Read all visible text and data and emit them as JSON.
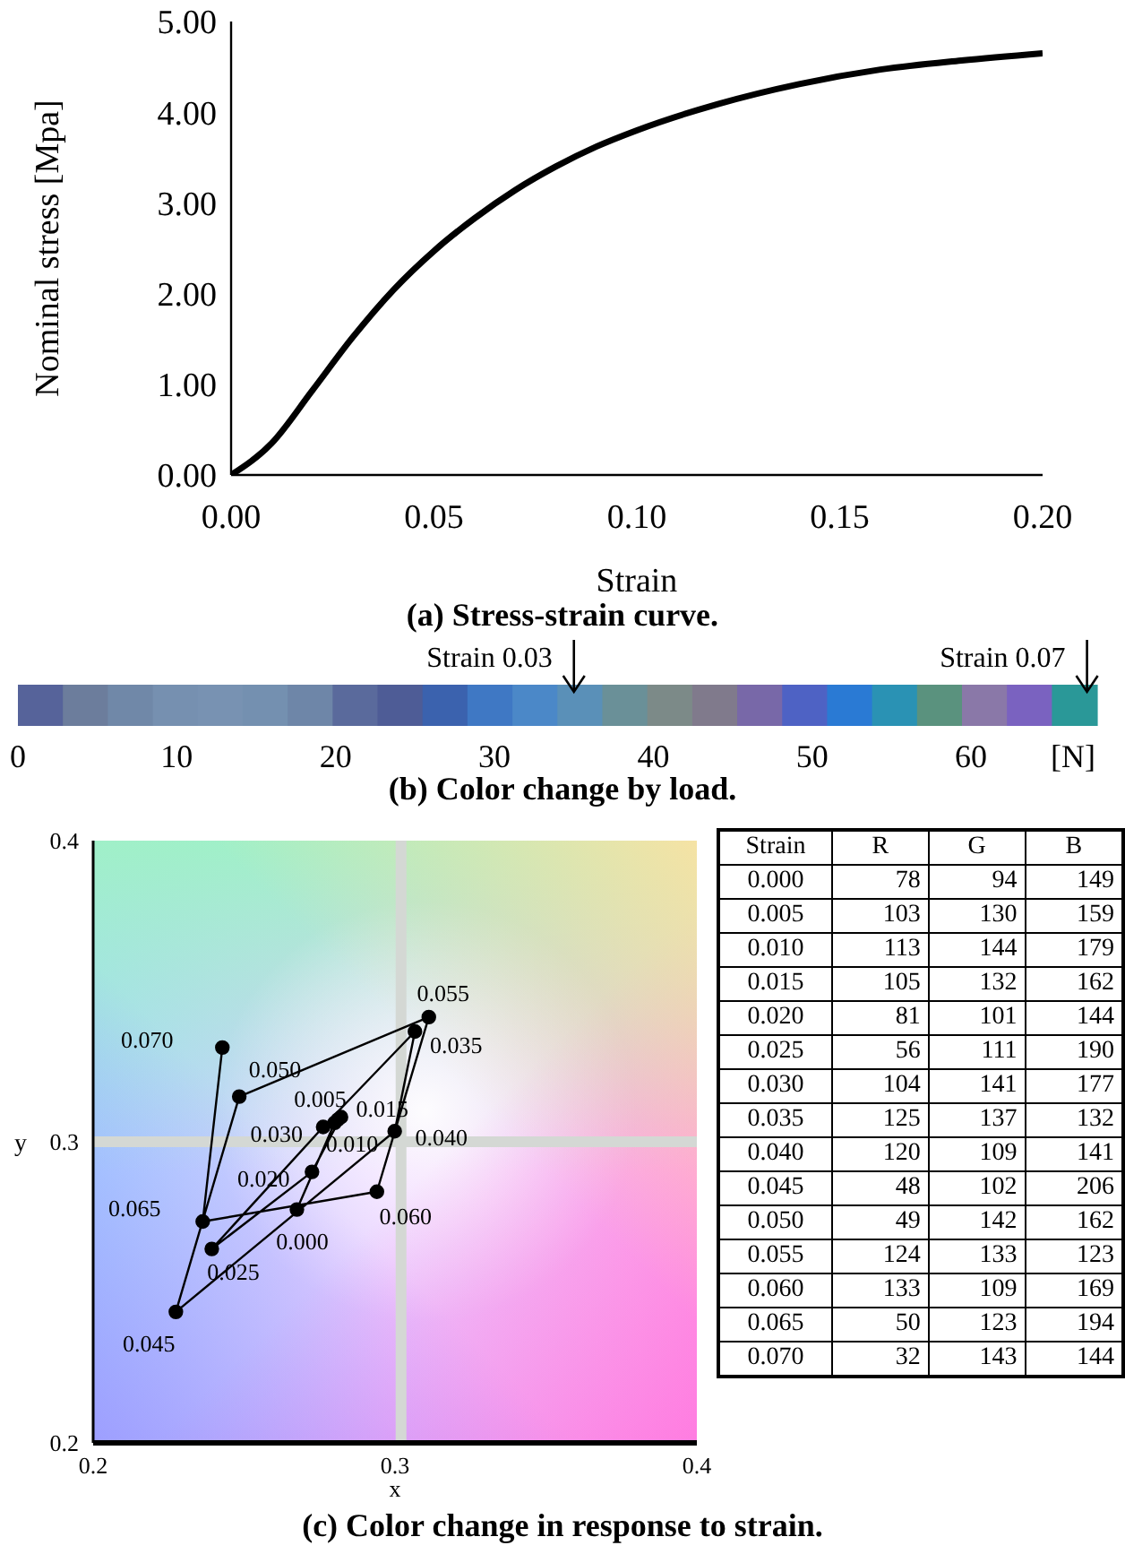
{
  "chart_data": [
    {
      "type": "line",
      "title": "(a) Stress-strain curve.",
      "xlabel": "Strain",
      "ylabel": "Nominal stress [Mpa]",
      "color": "#000000",
      "x": [
        0,
        0.01,
        0.02,
        0.03,
        0.04,
        0.05,
        0.06,
        0.07,
        0.08,
        0.09,
        0.1,
        0.12,
        0.14,
        0.16,
        0.18,
        0.2
      ],
      "values": [
        0,
        0.35,
        0.93,
        1.52,
        2.04,
        2.47,
        2.83,
        3.14,
        3.4,
        3.62,
        3.8,
        4.09,
        4.31,
        4.47,
        4.57,
        4.65
      ],
      "xlim": [
        0,
        0.2
      ],
      "ylim": [
        0,
        5
      ],
      "xticks": [
        {
          "value": 0,
          "label": "0.00"
        },
        {
          "value": 0.05,
          "label": "0.05"
        },
        {
          "value": 0.1,
          "label": "0.10"
        },
        {
          "value": 0.15,
          "label": "0.15"
        },
        {
          "value": 0.2,
          "label": "0.20"
        }
      ],
      "yticks": [
        {
          "value": 0,
          "label": "0.00"
        },
        {
          "value": 1,
          "label": "1.00"
        },
        {
          "value": 2,
          "label": "2.00"
        },
        {
          "value": 3,
          "label": "3.00"
        },
        {
          "value": 4,
          "label": "4.00"
        },
        {
          "value": 5,
          "label": "5.00"
        }
      ]
    },
    {
      "type": "bar",
      "orientation": "horizontal",
      "stacked": true,
      "title": "(b) Color change by load.",
      "xlabel": "[N]",
      "xlim": [
        0,
        68
      ],
      "xticks": [
        0,
        10,
        20,
        30,
        40,
        50,
        60
      ],
      "categories": [
        null
      ],
      "series": [
        {
          "color": "#56639a",
          "values": [
            2.83
          ]
        },
        {
          "color": "#6c7d9c",
          "values": [
            2.83
          ]
        },
        {
          "color": "#7088a8",
          "values": [
            2.83
          ]
        },
        {
          "color": "#7690b0",
          "values": [
            2.83
          ]
        },
        {
          "color": "#7892b2",
          "values": [
            2.83
          ]
        },
        {
          "color": "#7490b0",
          "values": [
            2.83
          ]
        },
        {
          "color": "#6e86a8",
          "values": [
            2.83
          ]
        },
        {
          "color": "#5a6a9c",
          "values": [
            2.83
          ]
        },
        {
          "color": "#4e5c96",
          "values": [
            2.83
          ]
        },
        {
          "color": "#3b62ae",
          "values": [
            2.83
          ]
        },
        {
          "color": "#3f78c4",
          "values": [
            2.83
          ]
        },
        {
          "color": "#4b88c8",
          "values": [
            2.83
          ]
        },
        {
          "color": "#5a90b8",
          "values": [
            2.83
          ]
        },
        {
          "color": "#6a9098",
          "values": [
            2.83
          ]
        },
        {
          "color": "#7c8a88",
          "values": [
            2.83
          ]
        },
        {
          "color": "#807a8c",
          "values": [
            2.83
          ]
        },
        {
          "color": "#7868a8",
          "values": [
            2.83
          ]
        },
        {
          "color": "#4e62c4",
          "values": [
            2.83
          ]
        },
        {
          "color": "#2a7ad4",
          "values": [
            2.83
          ]
        },
        {
          "color": "#2a92b4",
          "values": [
            2.83
          ]
        },
        {
          "color": "#5a927e",
          "values": [
            2.83
          ]
        },
        {
          "color": "#8a78a8",
          "values": [
            2.83
          ]
        },
        {
          "color": "#7a62c0",
          "values": [
            2.83
          ]
        },
        {
          "color": "#2a9898",
          "values": [
            2.83
          ]
        }
      ],
      "annotations": [
        "Strain 0.03",
        "Strain 0.07"
      ]
    },
    {
      "type": "line",
      "title": "(c) Color change in response to strain.",
      "xlabel": "x",
      "ylabel": "y",
      "color": "#000000",
      "marker": "circle",
      "x": [
        0.2675,
        0.28,
        0.281,
        0.2821,
        0.2725,
        0.2393,
        0.2762,
        0.3066,
        0.2999,
        0.2274,
        0.2484,
        0.3112,
        0.294,
        0.2363,
        0.2428
      ],
      "values": [
        0.2775,
        0.3063,
        0.3073,
        0.3082,
        0.29,
        0.2644,
        0.3049,
        0.3366,
        0.3035,
        0.2435,
        0.315,
        0.3414,
        0.2834,
        0.2735,
        0.3313
      ],
      "annotations": [
        {
          "text": "0.000",
          "x": 0.2675,
          "y": 0.2775
        },
        {
          "text": "0.005",
          "x": 0.28,
          "y": 0.3063
        },
        {
          "text": "0.010",
          "x": 0.281,
          "y": 0.3073
        },
        {
          "text": "0.015",
          "x": 0.2821,
          "y": 0.3082
        },
        {
          "text": "0.020",
          "x": 0.2725,
          "y": 0.29
        },
        {
          "text": "0.025",
          "x": 0.2393,
          "y": 0.2644
        },
        {
          "text": "0.030",
          "x": 0.2762,
          "y": 0.3049
        },
        {
          "text": "0.035",
          "x": 0.3066,
          "y": 0.3366
        },
        {
          "text": "0.040",
          "x": 0.2999,
          "y": 0.3035
        },
        {
          "text": "0.045",
          "x": 0.2274,
          "y": 0.2435
        },
        {
          "text": "0.050",
          "x": 0.2484,
          "y": 0.315
        },
        {
          "text": "0.055",
          "x": 0.3112,
          "y": 0.3414
        },
        {
          "text": "0.060",
          "x": 0.294,
          "y": 0.2834
        },
        {
          "text": "0.065",
          "x": 0.2363,
          "y": 0.2735
        },
        {
          "text": "0.070",
          "x": 0.2428,
          "y": 0.3313
        }
      ],
      "xlim": [
        0.2,
        0.4
      ],
      "ylim": [
        0.2,
        0.4
      ],
      "xticks": [
        0.2,
        0.3,
        0.4
      ],
      "yticks": [
        0.2,
        0.3,
        0.4
      ],
      "ref_lines": [
        {
          "axis": "x",
          "value": 0.302,
          "color": "#d4d8d4"
        },
        {
          "axis": "y",
          "value": 0.3,
          "color": "#d4d8d4"
        }
      ]
    },
    {
      "type": "heatmap",
      "ylabel": "Strain",
      "categories": [
        "R",
        "G",
        "B"
      ],
      "data_labels": true,
      "y_categories": [
        "0.000",
        "0.005",
        "0.010",
        "0.015",
        "0.020",
        "0.025",
        "0.030",
        "0.035",
        "0.040",
        "0.045",
        "0.050",
        "0.055",
        "0.060",
        "0.065",
        "0.070"
      ],
      "cells": [
        [
          78,
          94,
          149
        ],
        [
          103,
          130,
          159
        ],
        [
          113,
          144,
          179
        ],
        [
          105,
          132,
          162
        ],
        [
          81,
          101,
          144
        ],
        [
          56,
          111,
          190
        ],
        [
          104,
          141,
          177
        ],
        [
          125,
          137,
          132
        ],
        [
          120,
          109,
          141
        ],
        [
          48,
          102,
          206
        ],
        [
          49,
          142,
          162
        ],
        [
          124,
          133,
          123
        ],
        [
          133,
          109,
          169
        ],
        [
          50,
          123,
          194
        ],
        [
          32,
          143,
          144
        ]
      ]
    }
  ]
}
